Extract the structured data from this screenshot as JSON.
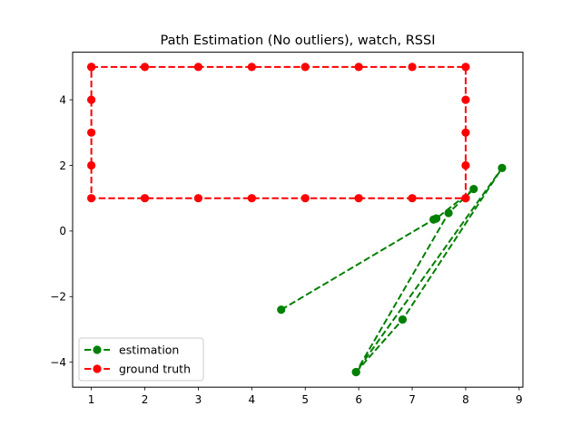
{
  "chart_data": {
    "type": "line",
    "title": "Path Estimation (No outliers), watch, RSSI",
    "xlabel": "",
    "ylabel": "",
    "xlim": [
      0.65,
      9.07
    ],
    "ylim": [
      -4.76,
      5.45
    ],
    "xticks": [
      1,
      2,
      3,
      4,
      5,
      6,
      7,
      8,
      9
    ],
    "yticks": [
      -4,
      -2,
      0,
      2,
      4
    ],
    "grid": false,
    "legend_position": "lower-left",
    "series": [
      {
        "name": "estimation",
        "color": "#008000",
        "linestyle": "dashed",
        "marker": "circle",
        "x": [
          4.55,
          7.4,
          7.45,
          8.15,
          7.68,
          5.95,
          8.68,
          6.82,
          5.95
        ],
        "y": [
          -2.4,
          0.35,
          0.38,
          1.28,
          0.55,
          -4.3,
          1.92,
          -2.7,
          -4.3
        ]
      },
      {
        "name": "ground truth",
        "color": "#ff0000",
        "linestyle": "dashed",
        "marker": "circle",
        "x": [
          1,
          2,
          3,
          4,
          5,
          6,
          7,
          8,
          8,
          8,
          8,
          8,
          8,
          7,
          6,
          5,
          4,
          3,
          2,
          1,
          1,
          1,
          1,
          1
        ],
        "y": [
          5,
          5,
          5,
          5,
          5,
          5,
          5,
          5,
          4,
          3,
          2,
          1,
          1,
          1,
          1,
          1,
          1,
          1,
          1,
          1,
          2,
          3,
          4,
          5
        ]
      }
    ]
  }
}
